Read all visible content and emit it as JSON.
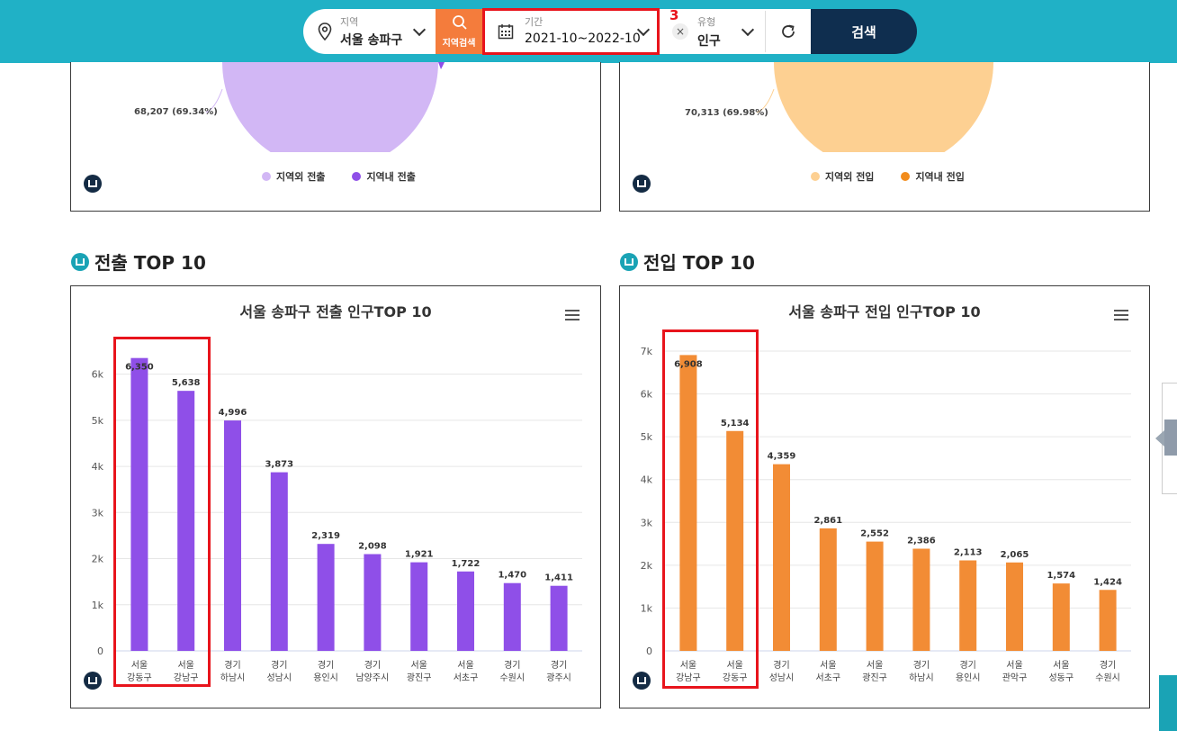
{
  "searchbar": {
    "region_label": "지역",
    "region_value": "서울 송파구",
    "region_search_label": "지역검색",
    "period_label": "기간",
    "period_value": "2021-10~2022-10",
    "annotation_number": "3",
    "type_label": "유형",
    "type_value": "인구",
    "search_button": "검색"
  },
  "top_pies": {
    "left": {
      "slice_label": "68,207 (69.34%)",
      "legend": [
        "지역외 전출",
        "지역내 전출"
      ],
      "colors": [
        "#d2b7f5",
        "#8f4fe8"
      ]
    },
    "right": {
      "slice_label": "70,313 (69.98%)",
      "legend": [
        "지역외 전입",
        "지역내 전입"
      ],
      "colors": [
        "#fdd092",
        "#f28c1c"
      ]
    }
  },
  "sections": {
    "left_title": "전출 TOP 10",
    "right_title": "전입 TOP 10"
  },
  "chart_data": [
    {
      "type": "bar",
      "title": "서울 송파구 전출 인구TOP 10",
      "categories": [
        [
          "서울",
          "강동구"
        ],
        [
          "서울",
          "강남구"
        ],
        [
          "경기",
          "하남시"
        ],
        [
          "경기",
          "성남시"
        ],
        [
          "경기",
          "용인시"
        ],
        [
          "경기",
          "남양주시"
        ],
        [
          "서울",
          "광진구"
        ],
        [
          "서울",
          "서초구"
        ],
        [
          "경기",
          "수원시"
        ],
        [
          "경기",
          "광주시"
        ]
      ],
      "values": [
        6350,
        5638,
        4996,
        3873,
        2319,
        2098,
        1921,
        1722,
        1470,
        1411
      ],
      "value_labels": [
        "6,350",
        "5,638",
        "4,996",
        "3,873",
        "2,319",
        "2,098",
        "1,921",
        "1,722",
        "1,470",
        "1,411"
      ],
      "ylim": [
        0,
        6500
      ],
      "yticks": [
        0,
        1000,
        2000,
        3000,
        4000,
        5000,
        6000
      ],
      "ytick_labels": [
        "0",
        "1k",
        "2k",
        "3k",
        "4k",
        "5k",
        "6k"
      ],
      "color": "#8f4fe8",
      "grid": true
    },
    {
      "type": "bar",
      "title": "서울 송파구 전입 인구TOP 10",
      "categories": [
        [
          "서울",
          "강남구"
        ],
        [
          "서울",
          "강동구"
        ],
        [
          "경기",
          "성남시"
        ],
        [
          "서울",
          "서초구"
        ],
        [
          "서울",
          "광진구"
        ],
        [
          "경기",
          "하남시"
        ],
        [
          "경기",
          "용인시"
        ],
        [
          "서울",
          "관악구"
        ],
        [
          "서울",
          "성동구"
        ],
        [
          "경기",
          "수원시"
        ]
      ],
      "values": [
        6908,
        5134,
        4359,
        2861,
        2552,
        2386,
        2113,
        2065,
        1574,
        1424
      ],
      "value_labels": [
        "6,908",
        "5,134",
        "4,359",
        "2,861",
        "2,552",
        "2,386",
        "2,113",
        "2,065",
        "1,574",
        "1,424"
      ],
      "ylim": [
        0,
        7000
      ],
      "yticks": [
        0,
        1000,
        2000,
        3000,
        4000,
        5000,
        6000,
        7000
      ],
      "ytick_labels": [
        "0",
        "1k",
        "2k",
        "3k",
        "4k",
        "5k",
        "6k",
        "7k"
      ],
      "color": "#f28c35",
      "grid": true
    }
  ]
}
